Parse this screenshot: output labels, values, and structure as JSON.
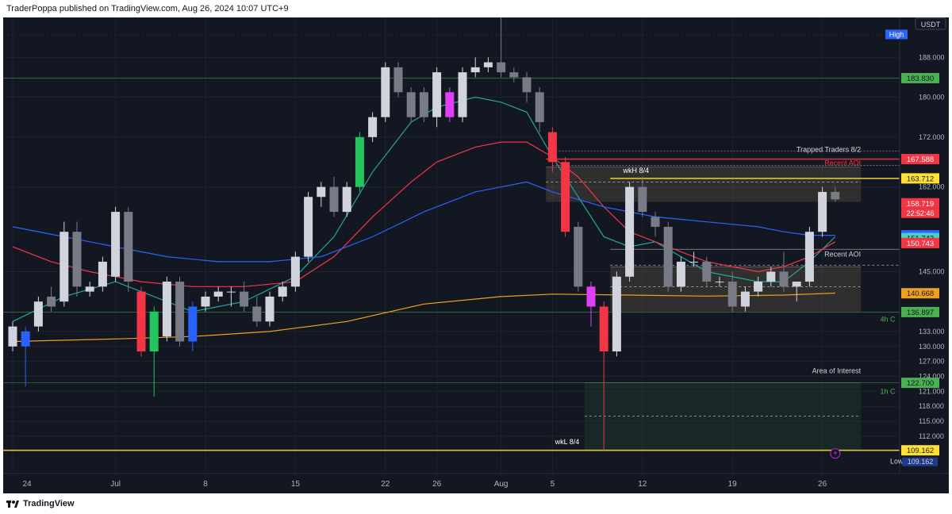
{
  "header": {
    "publisher_line": "TraderPoppa published on TradingView.com, Aug 26, 2024 10:07 UTC+9"
  },
  "footer": {
    "brand": "TradingView"
  },
  "chart_data": {
    "type": "candlestick",
    "currency": "USDT",
    "ylim": [
      104.5,
      196
    ],
    "y_ticks": [
      112,
      115,
      118,
      121,
      124,
      127,
      130,
      133,
      145,
      162,
      172,
      180,
      188
    ],
    "x_ticks": [
      {
        "label": "24",
        "i": 0
      },
      {
        "label": "Jul",
        "i": 8
      },
      {
        "label": "8",
        "i": 15
      },
      {
        "label": "15",
        "i": 22
      },
      {
        "label": "22",
        "i": 29
      },
      {
        "label": "26",
        "i": 33
      },
      {
        "label": "Aug",
        "i": 38
      },
      {
        "label": "5",
        "i": 42
      },
      {
        "label": "12",
        "i": 49
      },
      {
        "label": "19",
        "i": 56
      },
      {
        "label": "26",
        "i": 63
      }
    ],
    "colors": {
      "up": "#d1d4dc",
      "down": "#787b86",
      "green": "#22c55e",
      "red": "#f23645",
      "magenta": "#e040fb",
      "blue": "#2962ff",
      "ema_fast": "#26a69a",
      "ema_mid": "#f23645",
      "ema_slow": "#2962ff",
      "ema_long": "#f0a020"
    },
    "candles": [
      {
        "o": 130,
        "h": 135,
        "l": 129,
        "c": 134
      },
      {
        "o": 133,
        "h": 134,
        "l": 122,
        "c": 130,
        "color": "blue"
      },
      {
        "o": 134,
        "h": 140,
        "l": 133,
        "c": 139
      },
      {
        "o": 140,
        "h": 142,
        "l": 137,
        "c": 138
      },
      {
        "o": 139,
        "h": 155,
        "l": 138,
        "c": 153
      },
      {
        "o": 153,
        "h": 155,
        "l": 140,
        "c": 142
      },
      {
        "o": 141,
        "h": 143,
        "l": 140,
        "c": 142
      },
      {
        "o": 142,
        "h": 148,
        "l": 141,
        "c": 147
      },
      {
        "o": 144,
        "h": 158,
        "l": 143,
        "c": 157
      },
      {
        "o": 157,
        "h": 158,
        "l": 141,
        "c": 143
      },
      {
        "o": 141,
        "h": 142,
        "l": 128,
        "c": 129,
        "color": "red"
      },
      {
        "o": 129,
        "h": 138,
        "l": 120,
        "c": 137,
        "color": "green"
      },
      {
        "o": 132,
        "h": 144,
        "l": 131,
        "c": 143
      },
      {
        "o": 143,
        "h": 144,
        "l": 130,
        "c": 131
      },
      {
        "o": 131,
        "h": 139,
        "l": 129,
        "c": 138,
        "color": "blue"
      },
      {
        "o": 138,
        "h": 141,
        "l": 137,
        "c": 140
      },
      {
        "o": 140,
        "h": 142,
        "l": 139,
        "c": 141
      },
      {
        "o": 141,
        "h": 142,
        "l": 138,
        "c": 141
      },
      {
        "o": 141,
        "h": 143,
        "l": 137,
        "c": 138
      },
      {
        "o": 138,
        "h": 140,
        "l": 134,
        "c": 135
      },
      {
        "o": 135,
        "h": 141,
        "l": 134,
        "c": 140
      },
      {
        "o": 140,
        "h": 143,
        "l": 139,
        "c": 142
      },
      {
        "o": 142,
        "h": 149,
        "l": 141,
        "c": 148
      },
      {
        "o": 148,
        "h": 161,
        "l": 147,
        "c": 160
      },
      {
        "o": 160,
        "h": 163,
        "l": 158,
        "c": 162
      },
      {
        "o": 162,
        "h": 164,
        "l": 156,
        "c": 157
      },
      {
        "o": 157,
        "h": 163,
        "l": 156,
        "c": 162
      },
      {
        "o": 162,
        "h": 173,
        "l": 161,
        "c": 172,
        "color": "green"
      },
      {
        "o": 172,
        "h": 177,
        "l": 171,
        "c": 176
      },
      {
        "o": 176,
        "h": 187,
        "l": 175,
        "c": 186
      },
      {
        "o": 186,
        "h": 187,
        "l": 180,
        "c": 181
      },
      {
        "o": 181,
        "h": 182,
        "l": 175,
        "c": 176
      },
      {
        "o": 181,
        "h": 182,
        "l": 175,
        "c": 176
      },
      {
        "o": 176,
        "h": 186,
        "l": 174,
        "c": 185
      },
      {
        "o": 181,
        "h": 182,
        "l": 175,
        "c": 176,
        "color": "magenta"
      },
      {
        "o": 176,
        "h": 186,
        "l": 175,
        "c": 185
      },
      {
        "o": 185,
        "h": 188,
        "l": 184,
        "c": 186
      },
      {
        "o": 186,
        "h": 188,
        "l": 185,
        "c": 187
      },
      {
        "o": 187,
        "h": 196,
        "l": 184,
        "c": 185
      },
      {
        "o": 185,
        "h": 186,
        "l": 183,
        "c": 184
      },
      {
        "o": 184,
        "h": 185,
        "l": 179,
        "c": 181
      },
      {
        "o": 181,
        "h": 182,
        "l": 173,
        "c": 175
      },
      {
        "o": 173,
        "h": 174,
        "l": 165,
        "c": 167,
        "color": "red"
      },
      {
        "o": 167,
        "h": 168,
        "l": 152,
        "c": 153,
        "color": "red"
      },
      {
        "o": 154,
        "h": 155,
        "l": 141,
        "c": 142
      },
      {
        "o": 142,
        "h": 143,
        "l": 134,
        "c": 138,
        "color": "magenta"
      },
      {
        "o": 138,
        "h": 139,
        "l": 109.162,
        "c": 129,
        "color": "red"
      },
      {
        "o": 129,
        "h": 145,
        "l": 128,
        "c": 144
      },
      {
        "o": 144,
        "h": 163,
        "l": 143,
        "c": 162
      },
      {
        "o": 162,
        "h": 164,
        "l": 156,
        "c": 157
      },
      {
        "o": 156,
        "h": 157,
        "l": 152,
        "c": 154
      },
      {
        "o": 154,
        "h": 155,
        "l": 141,
        "c": 142
      },
      {
        "o": 142,
        "h": 148,
        "l": 141,
        "c": 147
      },
      {
        "o": 147,
        "h": 149,
        "l": 146,
        "c": 147
      },
      {
        "o": 147,
        "h": 148,
        "l": 142,
        "c": 143
      },
      {
        "o": 143,
        "h": 144,
        "l": 142,
        "c": 143
      },
      {
        "o": 143,
        "h": 145,
        "l": 137,
        "c": 138
      },
      {
        "o": 138,
        "h": 142,
        "l": 137,
        "c": 141
      },
      {
        "o": 141,
        "h": 144,
        "l": 140,
        "c": 143
      },
      {
        "o": 143,
        "h": 146,
        "l": 142,
        "c": 145
      },
      {
        "o": 145,
        "h": 149,
        "l": 141,
        "c": 142
      },
      {
        "o": 142,
        "h": 143,
        "l": 139,
        "c": 143
      },
      {
        "o": 143,
        "h": 154,
        "l": 142,
        "c": 153
      },
      {
        "o": 153,
        "h": 162,
        "l": 152,
        "c": 161
      },
      {
        "o": 161,
        "h": 162,
        "l": 159,
        "c": 159.5
      }
    ],
    "ema": [
      {
        "name": "EMA fast",
        "color": "#26a69a",
        "points": [
          [
            0,
            135
          ],
          [
            4,
            140
          ],
          [
            8,
            143
          ],
          [
            11,
            140
          ],
          [
            14,
            137
          ],
          [
            18,
            139
          ],
          [
            22,
            144
          ],
          [
            25,
            152
          ],
          [
            28,
            165
          ],
          [
            31,
            175
          ],
          [
            33,
            178
          ],
          [
            36,
            180
          ],
          [
            38,
            179
          ],
          [
            40,
            177
          ],
          [
            42,
            168
          ],
          [
            44,
            160
          ],
          [
            46,
            152
          ],
          [
            48,
            150
          ],
          [
            50,
            151
          ],
          [
            52,
            148
          ],
          [
            54,
            145
          ],
          [
            58,
            143
          ],
          [
            60,
            143
          ],
          [
            62,
            147
          ],
          [
            64,
            152
          ]
        ]
      },
      {
        "name": "EMA mid",
        "color": "#f23645",
        "points": [
          [
            0,
            150
          ],
          [
            3,
            147
          ],
          [
            6,
            145
          ],
          [
            10,
            143
          ],
          [
            14,
            142
          ],
          [
            18,
            142
          ],
          [
            22,
            143
          ],
          [
            25,
            148
          ],
          [
            28,
            156
          ],
          [
            31,
            163
          ],
          [
            33,
            167
          ],
          [
            36,
            170
          ],
          [
            38,
            171
          ],
          [
            40,
            171
          ],
          [
            42,
            168
          ],
          [
            44,
            164
          ],
          [
            46,
            158
          ],
          [
            48,
            153
          ],
          [
            50,
            151
          ],
          [
            52,
            149
          ],
          [
            54,
            147
          ],
          [
            58,
            145
          ],
          [
            60,
            146
          ],
          [
            62,
            148
          ],
          [
            64,
            151
          ]
        ]
      },
      {
        "name": "EMA slow",
        "color": "#2962ff",
        "points": [
          [
            0,
            154
          ],
          [
            4,
            152
          ],
          [
            8,
            150
          ],
          [
            12,
            148
          ],
          [
            16,
            147
          ],
          [
            20,
            147
          ],
          [
            24,
            148
          ],
          [
            28,
            152
          ],
          [
            32,
            157
          ],
          [
            36,
            161
          ],
          [
            38,
            162
          ],
          [
            40,
            163
          ],
          [
            42,
            161
          ],
          [
            46,
            158
          ],
          [
            50,
            156
          ],
          [
            54,
            155
          ],
          [
            58,
            154
          ],
          [
            60,
            153
          ],
          [
            62,
            152.3
          ],
          [
            64,
            152.3
          ]
        ]
      },
      {
        "name": "EMA long",
        "color": "#f0a020",
        "points": [
          [
            0,
            131
          ],
          [
            8,
            131.5
          ],
          [
            14,
            132
          ],
          [
            20,
            133
          ],
          [
            26,
            135
          ],
          [
            32,
            138.5
          ],
          [
            38,
            140
          ],
          [
            42,
            140.5
          ],
          [
            48,
            140.3
          ],
          [
            54,
            140.1
          ],
          [
            60,
            140.3
          ],
          [
            64,
            140.7
          ]
        ]
      }
    ],
    "zones": [
      {
        "i0": 42,
        "i1": 66,
        "y0": 159,
        "y1": 166,
        "fill": "rgba(120,110,80,0.28)",
        "mid": 163
      },
      {
        "i0": 47,
        "i1": 66,
        "y0": 137,
        "y1": 146,
        "fill": "rgba(120,110,80,0.28)",
        "mid": 142
      },
      {
        "i0": 45,
        "i1": 66,
        "y0": 109.162,
        "y1": 122.7,
        "fill": "rgba(40,90,60,0.25)",
        "mid": 116
      }
    ],
    "levels": [
      {
        "y": 183.83,
        "color": "#4caf50",
        "label": "183.830",
        "text_color": "#131722",
        "bg": "#4caf50",
        "x0": 0,
        "width": 0.6
      },
      {
        "y": 167.588,
        "color": "#f23645",
        "label": "167.588",
        "text_color": "#ffffff",
        "bg": "#f23645",
        "x0": 42,
        "width": 1.6
      },
      {
        "y": 163.712,
        "color": "#ffe135",
        "label": "163.712",
        "text_color": "#131722",
        "bg": "#ffe135",
        "x0": 47,
        "width": 1.6
      },
      {
        "y": 158.719,
        "color": "#f23645",
        "label": "158.719",
        "text_color": "#ffffff",
        "bg": "#f23645",
        "x0": -1,
        "width": 0,
        "sub": "22:52:46"
      },
      {
        "y": 152.312,
        "color": "#2962ff",
        "label": "152.312",
        "text_color": "#ffffff",
        "bg": "#2962ff",
        "x0": -1,
        "width": 0
      },
      {
        "y": 151.743,
        "color": "#26a69a",
        "label": "151.743",
        "text_color": "#131722",
        "bg": "#4dd0c1",
        "x0": -1,
        "width": 0
      },
      {
        "y": 150.743,
        "color": "#f23645",
        "label": "150.743",
        "text_color": "#ffffff",
        "bg": "#f23645",
        "x0": -1,
        "width": 0
      },
      {
        "y": 140.668,
        "color": "#f0a020",
        "label": "140.668",
        "text_color": "#131722",
        "bg": "#f0a020",
        "x0": -1,
        "width": 0
      },
      {
        "y": 136.897,
        "color": "#4caf50",
        "label": "136.897",
        "text_color": "#131722",
        "bg": "#4caf50",
        "x0": 0,
        "width": 0.6
      },
      {
        "y": 122.7,
        "color": "#4caf50",
        "label": "122.700",
        "text_color": "#131722",
        "bg": "#4caf50",
        "x0": 0,
        "width": 0.6
      },
      {
        "y": 109.162,
        "color": "#ffe135",
        "label": "109.162",
        "text_color": "#131722",
        "bg": "#ffe135",
        "x0": 0,
        "width": 1.6
      }
    ],
    "annotations": [
      {
        "text": "Trapped Traders 8/2",
        "color": "#d1d4dc",
        "i": 66,
        "y": 169.0,
        "anchor": "end"
      },
      {
        "text": "Recent AOI",
        "color": "#f23645",
        "i": 66,
        "y": 166.3,
        "anchor": "end"
      },
      {
        "text": "wkH 8/4",
        "color": "#ffffff",
        "i": 47.5,
        "y": 164.8,
        "anchor": "start"
      },
      {
        "text": "Recent AOI",
        "color": "#d1d4dc",
        "i": 66,
        "y": 148.0,
        "anchor": "end"
      },
      {
        "text": "4h C",
        "color": "#4caf50",
        "i": 67.5,
        "y": 135.0,
        "anchor": "start"
      },
      {
        "text": "Area of Interest",
        "color": "#d1d4dc",
        "i": 66,
        "y": 124.6,
        "anchor": "end"
      },
      {
        "text": "1h C",
        "color": "#4caf50",
        "i": 67.5,
        "y": 120.5,
        "anchor": "start"
      },
      {
        "text": "wkL 8/4",
        "color": "#ffffff",
        "i": 42.2,
        "y": 110.4,
        "anchor": "start"
      }
    ],
    "high_label": "High",
    "low_label": "Low",
    "low_value": "109.162"
  }
}
